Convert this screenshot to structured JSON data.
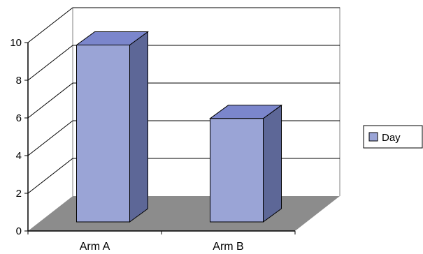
{
  "chart_data": {
    "type": "bar",
    "title": "",
    "xlabel": "",
    "ylabel": "",
    "categories": [
      "Arm A",
      "Arm B"
    ],
    "series": [
      {
        "name": "Day",
        "values": [
          9.5,
          5.6
        ]
      }
    ],
    "ylim": [
      0,
      10
    ],
    "yticks": [
      0,
      2,
      4,
      6,
      8,
      10
    ],
    "ytick_labels": [
      "0",
      "2",
      "4",
      "6",
      "8",
      "10"
    ],
    "grid": true,
    "legend_position": "right",
    "three_d": true,
    "colors": {
      "bar_front": "#9aa4d6",
      "bar_top": "#7b86cc",
      "bar_side": "#5d6797",
      "floor": "#8c8c8c",
      "outline": "#000000",
      "gridline": "#000000"
    }
  }
}
